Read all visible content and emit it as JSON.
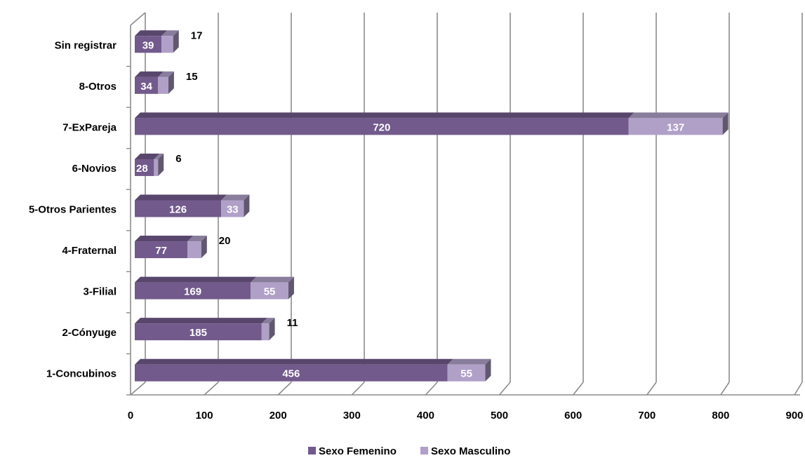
{
  "chart_data": {
    "type": "bar",
    "orientation": "horizontal",
    "stacked": true,
    "three_d": true,
    "categories": [
      "1-Concubinos",
      "2-Cónyuge",
      "3-Filial",
      "4-Fraternal",
      "5-Otros Parientes",
      "6-Novios",
      "7-ExPareja",
      "8-Otros",
      "Sin registrar"
    ],
    "series": [
      {
        "name": "Sexo Femenino",
        "values": [
          456,
          185,
          169,
          77,
          126,
          28,
          720,
          34,
          39
        ],
        "color": "#725a8c"
      },
      {
        "name": "Sexo Masculino",
        "values": [
          55,
          11,
          55,
          20,
          33,
          6,
          137,
          15,
          17
        ],
        "color": "#b0a0c8"
      }
    ],
    "x_ticks": [
      "0",
      "100",
      "200",
      "300",
      "400",
      "500",
      "600",
      "700",
      "800",
      "900"
    ],
    "xlim": [
      0,
      900
    ],
    "grid": true,
    "legend_position": "bottom"
  }
}
